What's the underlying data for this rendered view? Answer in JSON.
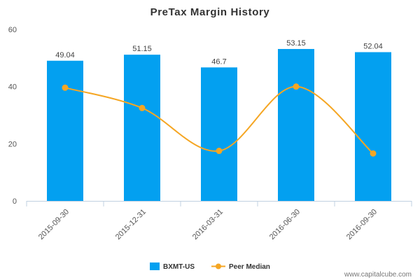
{
  "chart_data": {
    "type": "bar",
    "title": "PreTax Margin History",
    "categories": [
      "2015-09-30",
      "2015-12-31",
      "2016-03-31",
      "2016-06-30",
      "2016-09-30"
    ],
    "series": [
      {
        "name": "BXMT-US",
        "type": "bar",
        "color": "#03a0f0",
        "values": [
          49.04,
          51.15,
          46.7,
          53.15,
          52.04
        ],
        "labels": [
          "49.04",
          "51.15",
          "46.7",
          "53.15",
          "52.04"
        ]
      },
      {
        "name": "Peer Median",
        "type": "line",
        "color": "#f5a623",
        "values": [
          39.6,
          32.5,
          17.5,
          40.0,
          16.6
        ]
      }
    ],
    "y_ticks": [
      "0",
      "20",
      "40",
      "60"
    ],
    "ylim": [
      0,
      60
    ],
    "grid": false,
    "legend": "bottom-center"
  },
  "watermark": "www.capitalcube.com"
}
